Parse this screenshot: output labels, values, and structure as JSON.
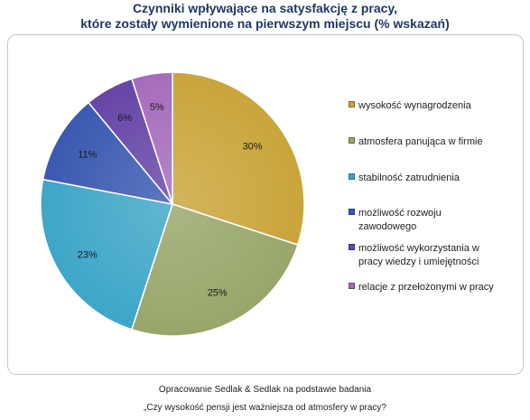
{
  "chart_data": {
    "type": "pie",
    "title_line1": "Czynniki wpływające na satysfakcję z pracy,",
    "title_line2": "które zostały wymienione na pierwszym miejscu (% wskazań)",
    "legend_position": "right",
    "slices": [
      {
        "label": "wysokość wynagrodzenia",
        "value": 30,
        "label_text": "30%",
        "color": "#c9a53a"
      },
      {
        "label": "atmosfera panująca w firmie",
        "value": 25,
        "label_text": "25%",
        "color": "#98a66a"
      },
      {
        "label": "stabilność zatrudnienia",
        "value": 23,
        "label_text": "23%",
        "color": "#3ea6c7"
      },
      {
        "label": "możliwość rozwoju zawodowego",
        "value": 11,
        "label_text": "11%",
        "color": "#3a59b1"
      },
      {
        "label": "możliwość wykorzystania w pracy wiedzy i umiejętności",
        "value": 6,
        "label_text": "6%",
        "color": "#6646a6"
      },
      {
        "label": "relacje z przełożonymi w pracy",
        "value": 5,
        "label_text": "5%",
        "color": "#a66cbc"
      }
    ]
  },
  "legend": {
    "items": [
      {
        "line1": "wysokość wynagrodzenia",
        "line2": ""
      },
      {
        "line1": "atmosfera panująca w firmie",
        "line2": ""
      },
      {
        "line1": "stabilność zatrudnienia",
        "line2": ""
      },
      {
        "line1": "możliwość rozwoju",
        "line2": "zawodowego"
      },
      {
        "line1": "możliwość wykorzystania w",
        "line2": "pracy wiedzy i umiejętności"
      },
      {
        "line1": "relacje z przełożonymi w pracy",
        "line2": ""
      }
    ]
  },
  "source": {
    "line1": "Opracowanie Sedlak & Sedlak na podstawie badania",
    "line2": "„Czy wysokość pensji jest ważniejsza od atmosfery w pracy?"
  }
}
